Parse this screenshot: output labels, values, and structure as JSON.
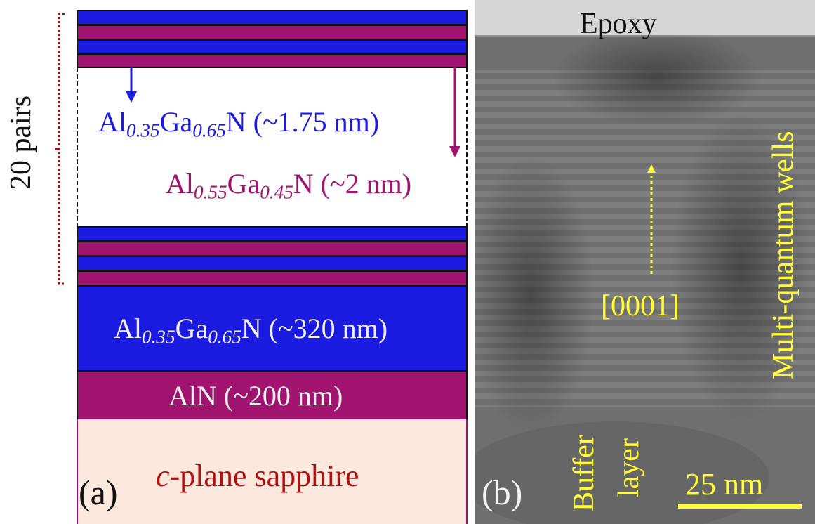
{
  "panel_a": {
    "pairs_label": "20 pairs",
    "well_label": {
      "base": "Al",
      "sub1": "0.35",
      "mid": "Ga",
      "sub2": "0.65",
      "end": "N (~1.75 nm)"
    },
    "barrier_label": {
      "base": "Al",
      "sub1": "0.55",
      "mid": "Ga",
      "sub2": "0.45",
      "end": "N (~2 nm)"
    },
    "buffer_label": {
      "base": "Al",
      "sub1": "0.35",
      "mid": "Ga",
      "sub2": "0.65",
      "end": "N (~320 nm)"
    },
    "aln_label": "AlN (~200 nm)",
    "substrate_label": {
      "italic": "c",
      "rest": "-plane sapphire"
    },
    "panel_tag": "(a)"
  },
  "panel_b": {
    "top_label": "Epoxy",
    "direction_label": "[0001]",
    "mqw_label": "Multi-quantum wells",
    "buffer_word1": "Buffer",
    "buffer_word2": "layer",
    "scale_label": "25 nm",
    "panel_tag": "(b)"
  },
  "colors": {
    "well": "#1a1ae0",
    "barrier": "#a01470",
    "substrate": "#fce8dc",
    "annotation": "#ffff33",
    "bracket": "#a01010"
  }
}
